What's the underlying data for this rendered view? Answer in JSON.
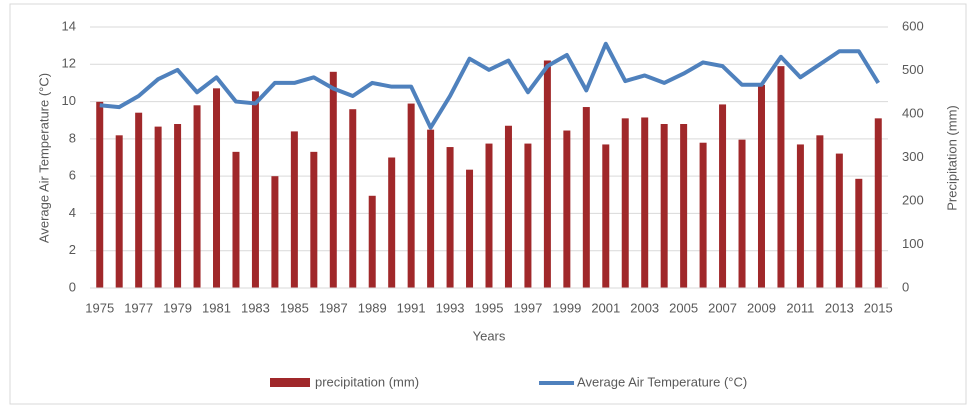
{
  "chart_data": {
    "type": "bar-line",
    "x_label": "Years",
    "y_label": "Average Air Temperature (°C)",
    "y2_label": "Precipitation (mm)",
    "categories": [
      "1975",
      null,
      "1977",
      null,
      "1979",
      null,
      "1981",
      null,
      "1983",
      null,
      "1985",
      null,
      "1987",
      null,
      "1989",
      null,
      "1991",
      null,
      "1993",
      null,
      "1995",
      null,
      "1997",
      null,
      "1999",
      null,
      "2001",
      null,
      "2003",
      null,
      "2005",
      null,
      "2007",
      null,
      "2009",
      null,
      "2011",
      null,
      "2013",
      null,
      "2015"
    ],
    "series": [
      {
        "name": "precipitation (mm)",
        "type": "bar",
        "axis": "y2",
        "color": "#a0282a",
        "values": [
          428,
          351,
          403,
          371,
          377,
          420,
          459,
          313,
          452,
          257,
          360,
          313,
          497,
          411,
          212,
          300,
          424,
          364,
          324,
          272,
          332,
          373,
          332,
          523,
          362,
          416,
          330,
          390,
          392,
          377,
          377,
          334,
          422,
          341,
          467,
          510,
          330,
          351,
          309,
          251,
          390
        ]
      },
      {
        "name": "Average Air Temperature (°C)",
        "type": "line",
        "axis": "y",
        "color": "#4f81bd",
        "values": [
          9.8,
          9.7,
          10.3,
          11.2,
          11.7,
          10.5,
          11.3,
          10.0,
          9.9,
          11.0,
          11.0,
          11.3,
          10.7,
          10.3,
          11.0,
          10.8,
          10.8,
          8.6,
          10.3,
          12.3,
          11.7,
          12.2,
          10.5,
          11.9,
          12.5,
          10.6,
          13.1,
          11.1,
          11.4,
          11.0,
          11.5,
          12.1,
          11.9,
          10.9,
          10.9,
          12.4,
          11.3,
          12.0,
          12.7,
          12.7,
          11.0
        ]
      }
    ],
    "ylim": [
      0,
      14
    ],
    "yticks": [
      0,
      2,
      4,
      6,
      8,
      10,
      12,
      14
    ],
    "y2lim": [
      0,
      600
    ],
    "y2ticks": [
      0,
      100,
      200,
      300,
      400,
      500,
      600
    ],
    "grid": true,
    "legend": "bottom"
  }
}
